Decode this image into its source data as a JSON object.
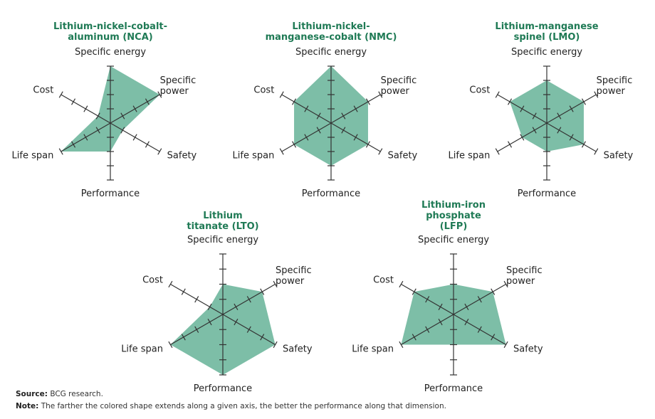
{
  "chart_data": [
    {
      "type": "radar",
      "title": "Lithium-nickel-cobalt-aluminum (NCA)",
      "axes": [
        "Specific energy",
        "Specific power",
        "Safety",
        "Performance",
        "Life span",
        "Cost"
      ],
      "values": [
        4,
        4,
        1,
        2,
        4,
        1
      ],
      "color": "#6fb79d",
      "rlim": [
        0,
        4
      ],
      "rticks": [
        1,
        2,
        3,
        4
      ]
    },
    {
      "type": "radar",
      "title": "Lithium-nickel-manganese-cobalt (NMC)",
      "axes": [
        "Specific energy",
        "Specific power",
        "Safety",
        "Performance",
        "Life span",
        "Cost"
      ],
      "values": [
        4,
        3,
        3,
        3,
        3,
        3
      ],
      "color": "#6fb79d",
      "rlim": [
        0,
        4
      ],
      "rticks": [
        1,
        2,
        3,
        4
      ]
    },
    {
      "type": "radar",
      "title": "Lithium-manganese spinel (LMO)",
      "axes": [
        "Specific energy",
        "Specific power",
        "Safety",
        "Performance",
        "Life span",
        "Cost"
      ],
      "values": [
        3,
        3,
        3,
        2,
        2,
        3
      ],
      "color": "#6fb79d",
      "rlim": [
        0,
        4
      ],
      "rticks": [
        1,
        2,
        3,
        4
      ]
    },
    {
      "type": "radar",
      "title": "Lithium titanate (LTO)",
      "axes": [
        "Specific energy",
        "Specific power",
        "Safety",
        "Performance",
        "Life span",
        "Cost"
      ],
      "values": [
        2,
        3,
        4,
        4,
        4,
        1
      ],
      "color": "#6fb79d",
      "rlim": [
        0,
        4
      ],
      "rticks": [
        1,
        2,
        3,
        4
      ]
    },
    {
      "type": "radar",
      "title": "Lithium-iron phosphate (LFP)",
      "axes": [
        "Specific energy",
        "Specific power",
        "Safety",
        "Performance",
        "Life span",
        "Cost"
      ],
      "values": [
        2,
        3,
        4,
        2,
        4,
        3
      ],
      "color": "#6fb79d",
      "rlim": [
        0,
        4
      ],
      "rticks": [
        1,
        2,
        3,
        4
      ]
    }
  ],
  "footer": {
    "source_label": "Source:",
    "source": "BCG research.",
    "note_label": "Note:",
    "note": "The farther the colored shape extends along a given axis, the better the performance along that dimension."
  }
}
